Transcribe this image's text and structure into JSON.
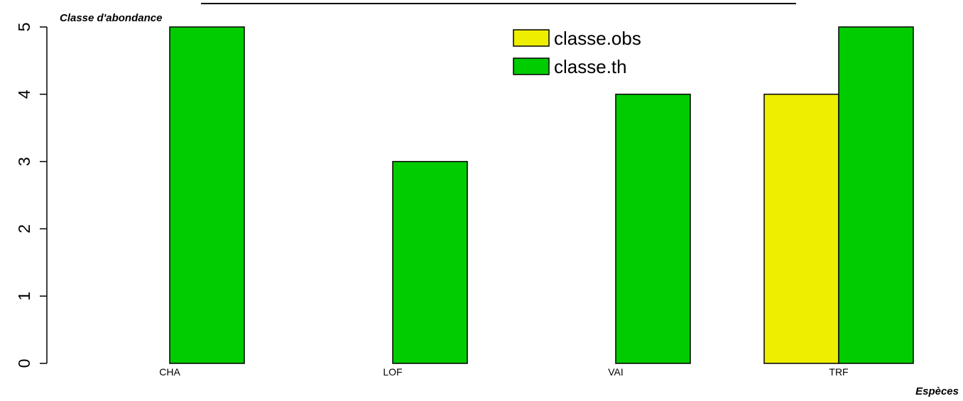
{
  "chart_data": {
    "type": "bar",
    "categories": [
      "CHA",
      "LOF",
      "VAI",
      "TRF"
    ],
    "series": [
      {
        "name": "classe.obs",
        "color": "#eeee00",
        "values": [
          0,
          0,
          0,
          4
        ]
      },
      {
        "name": "classe.th",
        "color": "#00cc00",
        "values": [
          5,
          3,
          4,
          5
        ]
      }
    ],
    "xlabel": "Espèces",
    "ylabel": "Classe d'abondance",
    "ylim": [
      0,
      5
    ],
    "yticks": [
      0,
      1,
      2,
      3,
      4,
      5
    ],
    "grid": false,
    "legend_position": "top-center"
  }
}
